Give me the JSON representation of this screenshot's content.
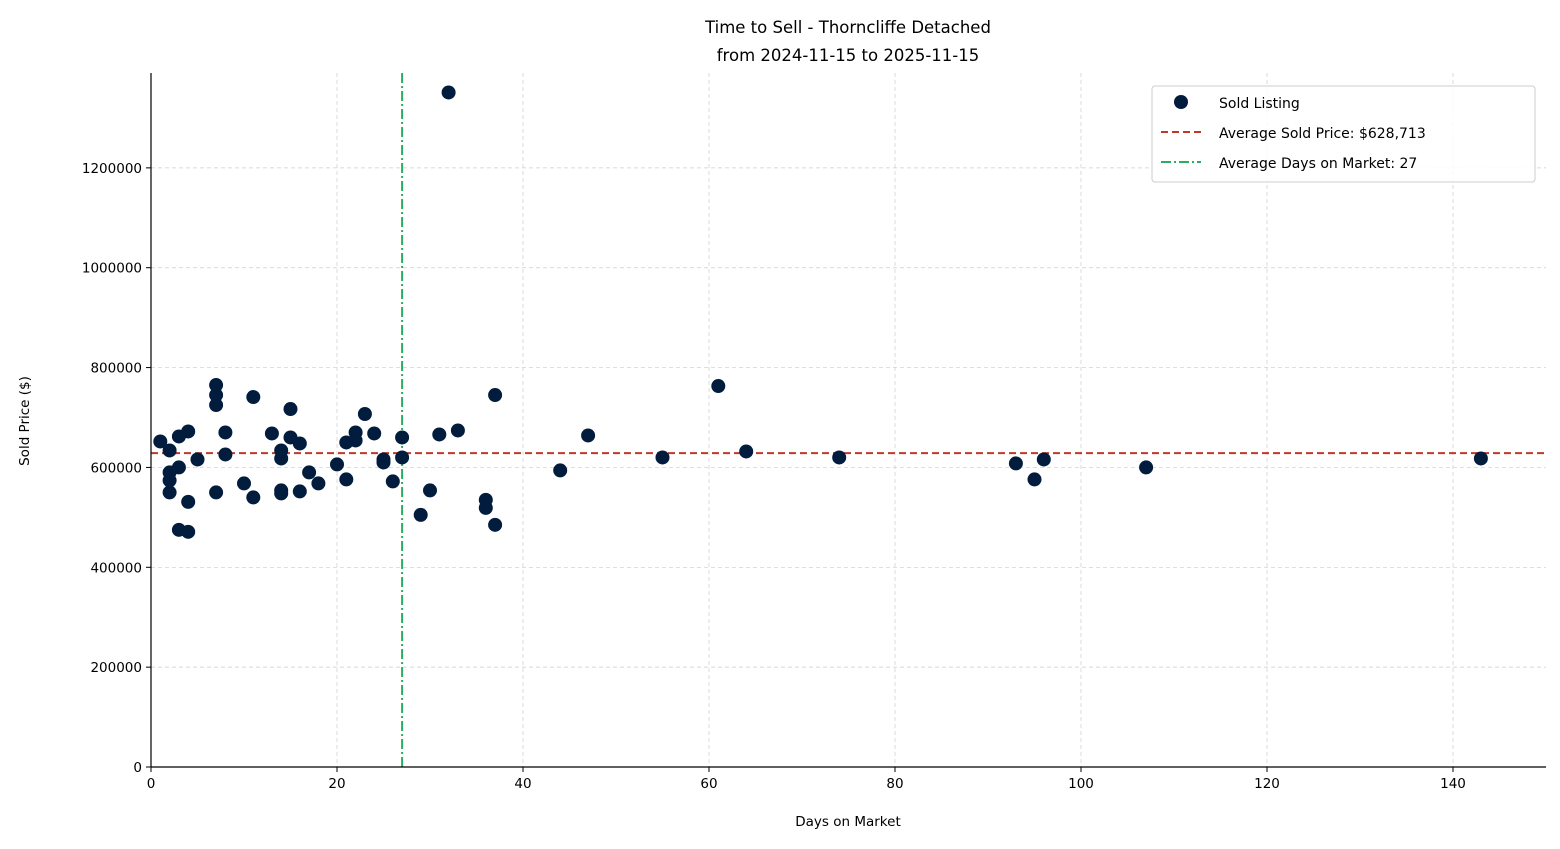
{
  "chart_data": {
    "type": "scatter",
    "title": "Time to Sell - Thorncliffe Detached",
    "subtitle": "from 2024-11-15 to 2025-11-15",
    "xlabel": "Days on Market",
    "ylabel": "Sold Price ($)",
    "xlim": [
      0,
      150
    ],
    "ylim": [
      0,
      1390000
    ],
    "xticks": [
      0,
      20,
      40,
      60,
      80,
      100,
      120,
      140
    ],
    "yticks": [
      0,
      200000,
      400000,
      600000,
      800000,
      1000000,
      1200000
    ],
    "grid": true,
    "legend_position": "top-right",
    "series": [
      {
        "name": "Sold Listing",
        "color": "#021c3d",
        "points": [
          [
            1,
            652000
          ],
          [
            2,
            634000
          ],
          [
            2,
            590000
          ],
          [
            2,
            574000
          ],
          [
            2,
            550000
          ],
          [
            3,
            662000
          ],
          [
            3,
            600000
          ],
          [
            3,
            475000
          ],
          [
            4,
            672000
          ],
          [
            4,
            531000
          ],
          [
            4,
            471000
          ],
          [
            5,
            616000
          ],
          [
            7,
            765000
          ],
          [
            7,
            745000
          ],
          [
            7,
            725000
          ],
          [
            7,
            550000
          ],
          [
            8,
            670000
          ],
          [
            8,
            626000
          ],
          [
            10,
            568000
          ],
          [
            11,
            741000
          ],
          [
            11,
            540000
          ],
          [
            13,
            668000
          ],
          [
            14,
            634000
          ],
          [
            14,
            618000
          ],
          [
            14,
            554000
          ],
          [
            14,
            548000
          ],
          [
            15,
            717000
          ],
          [
            15,
            660000
          ],
          [
            16,
            648000
          ],
          [
            16,
            552000
          ],
          [
            17,
            590000
          ],
          [
            18,
            568000
          ],
          [
            20,
            606000
          ],
          [
            21,
            650000
          ],
          [
            21,
            576000
          ],
          [
            22,
            670000
          ],
          [
            22,
            654000
          ],
          [
            23,
            707000
          ],
          [
            24,
            668000
          ],
          [
            25,
            616000
          ],
          [
            25,
            610000
          ],
          [
            26,
            572000
          ],
          [
            27,
            660000
          ],
          [
            27,
            620000
          ],
          [
            29,
            505000
          ],
          [
            30,
            554000
          ],
          [
            31,
            666000
          ],
          [
            32,
            1351000
          ],
          [
            33,
            674000
          ],
          [
            36,
            535000
          ],
          [
            36,
            519000
          ],
          [
            37,
            745000
          ],
          [
            37,
            485000
          ],
          [
            44,
            594000
          ],
          [
            47,
            664000
          ],
          [
            55,
            620000
          ],
          [
            61,
            763000
          ],
          [
            64,
            632000
          ],
          [
            74,
            620000
          ],
          [
            93,
            608000
          ],
          [
            95,
            576000
          ],
          [
            96,
            616000
          ],
          [
            107,
            600000
          ],
          [
            143,
            618000
          ]
        ]
      }
    ],
    "reference_lines": [
      {
        "name": "Average Sold Price: $628,713",
        "orientation": "horizontal",
        "value": 628713,
        "color": "#c0392b",
        "style": "dashed"
      },
      {
        "name": "Average Days on Market: 27",
        "orientation": "vertical",
        "value": 27,
        "color": "#27ae60",
        "style": "dashdot"
      }
    ]
  }
}
